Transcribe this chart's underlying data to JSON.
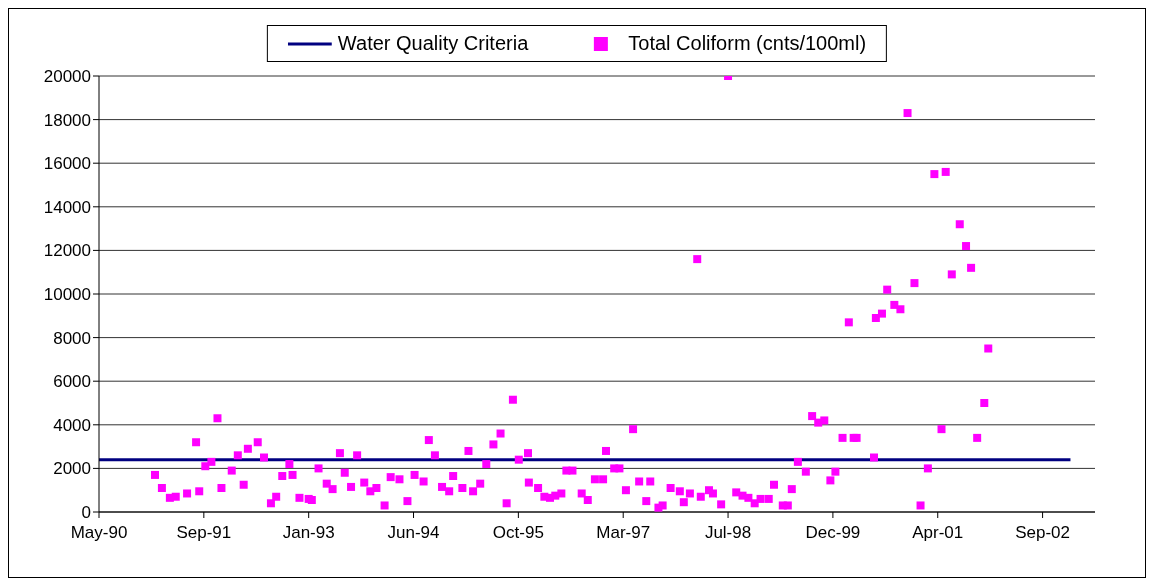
{
  "chart_data": {
    "type": "scatter",
    "legend": "top",
    "grid": "y",
    "line_style": "solid",
    "xlim": [
      "1990-05-07",
      "2003-05-09"
    ],
    "xticks": [
      {
        "value": "1990-05-07",
        "label": "May-90"
      },
      {
        "value": "1991-09-19",
        "label": "Sep-91"
      },
      {
        "value": "1993-01-31",
        "label": "Jan-93"
      },
      {
        "value": "1994-06-15",
        "label": "Jun-94"
      },
      {
        "value": "1995-10-28",
        "label": "Oct-95"
      },
      {
        "value": "1997-03-11",
        "label": "Mar-97"
      },
      {
        "value": "1998-07-24",
        "label": "Jul-98"
      },
      {
        "value": "1999-12-06",
        "label": "Dec-99"
      },
      {
        "value": "2001-04-19",
        "label": "Apr-01"
      },
      {
        "value": "2002-09-01",
        "label": "Sep-02"
      }
    ],
    "ylim": [
      0,
      20000
    ],
    "yticks": [
      0,
      2000,
      4000,
      6000,
      8000,
      10000,
      12000,
      14000,
      16000,
      18000,
      20000
    ],
    "series": [
      {
        "name": "Water Quality Criteria",
        "type": "line",
        "color": "#000080",
        "marker": "none",
        "x": [
          "1990-05-07",
          "2003-01-12"
        ],
        "values": [
          2400,
          2400
        ]
      },
      {
        "name": "Total Coliform (cnts/100ml)",
        "color": "#ff00ff",
        "marker": "square",
        "x": [
          "1991-01-29",
          "1991-03-03",
          "1991-04-10",
          "1991-05-08",
          "1991-07-01",
          "1991-08-13",
          "1991-08-28",
          "1991-09-26",
          "1991-10-25",
          "1991-11-23",
          "1991-12-12",
          "1992-01-30",
          "1992-02-28",
          "1992-03-27",
          "1992-04-16",
          "1992-06-02",
          "1992-07-02",
          "1992-08-04",
          "1992-08-29",
          "1992-09-27",
          "1992-10-31",
          "1992-11-15",
          "1992-12-18",
          "1993-01-31",
          "1993-02-15",
          "1993-03-19",
          "1993-04-27",
          "1993-05-25",
          "1993-06-29",
          "1993-07-22",
          "1993-08-21",
          "1993-09-19",
          "1993-10-23",
          "1993-11-21",
          "1993-12-20",
          "1994-01-28",
          "1994-02-26",
          "1994-04-09",
          "1994-05-17",
          "1994-06-20",
          "1994-08-02",
          "1994-08-27",
          "1994-09-25",
          "1994-10-29",
          "1994-12-02",
          "1994-12-21",
          "1995-02-03",
          "1995-03-04",
          "1995-03-26",
          "1995-04-29",
          "1995-05-28",
          "1995-07-01",
          "1995-08-04",
          "1995-09-02",
          "1995-10-02",
          "1995-10-30",
          "1995-12-13",
          "1995-12-17",
          "1996-01-30",
          "1996-02-29",
          "1996-03-27",
          "1996-04-21",
          "1996-05-20",
          "1996-06-13",
          "1996-07-12",
          "1996-08-25",
          "1996-09-23",
          "1996-10-27",
          "1996-12-05",
          "1996-12-19",
          "1997-01-27",
          "1997-02-21",
          "1997-03-24",
          "1997-04-27",
          "1997-05-26",
          "1997-06-29",
          "1997-07-18",
          "1997-08-26",
          "1997-09-15",
          "1997-10-23",
          "1997-12-06",
          "1997-12-25",
          "1998-01-23",
          "1998-02-27",
          "1998-03-16",
          "1998-04-24",
          "1998-05-13",
          "1998-06-21",
          "1998-07-24",
          "1998-09-01",
          "1998-10-01",
          "1998-10-29",
          "1998-11-28",
          "1998-12-26",
          "1999-02-03",
          "1999-02-28",
          "1999-04-11",
          "1999-05-05",
          "1999-05-24",
          "1999-06-22",
          "1999-07-30",
          "1999-08-29",
          "1999-09-27",
          "1999-10-26",
          "1999-11-24",
          "1999-12-18",
          "2000-01-21",
          "2000-02-20",
          "2000-03-14",
          "2000-03-28",
          "2000-06-19",
          "2000-06-28",
          "2000-07-27",
          "2000-08-21",
          "2000-09-24",
          "2000-10-23",
          "2000-11-26",
          "2000-12-29",
          "2001-01-27",
          "2001-03-03",
          "2001-04-03",
          "2001-05-07",
          "2001-05-27",
          "2001-06-25",
          "2001-08-02",
          "2001-09-01",
          "2001-09-25",
          "2001-10-24",
          "2001-11-27",
          "2001-12-16"
        ],
        "values": [
          1700,
          1100,
          650,
          700,
          850,
          3200,
          950,
          2100,
          2300,
          4300,
          1100,
          1900,
          2600,
          1250,
          2900,
          3200,
          2500,
          400,
          700,
          1650,
          2200,
          1700,
          650,
          600,
          550,
          2000,
          1300,
          1050,
          2700,
          1800,
          1150,
          2600,
          1350,
          950,
          1100,
          300,
          1600,
          1500,
          500,
          1700,
          1400,
          3300,
          2600,
          1150,
          950,
          1650,
          1100,
          2800,
          950,
          1300,
          2200,
          3100,
          3600,
          400,
          5150,
          2400,
          2700,
          1350,
          1100,
          700,
          650,
          750,
          850,
          1900,
          1900,
          850,
          550,
          1500,
          1500,
          2800,
          2000,
          2000,
          1000,
          3800,
          1400,
          500,
          1400,
          200,
          300,
          1100,
          950,
          450,
          850,
          11600,
          700,
          1000,
          850,
          350,
          20000,
          900,
          750,
          650,
          400,
          600,
          600,
          1250,
          300,
          300,
          1050,
          2300,
          1850,
          4400,
          4100,
          4200,
          1450,
          1850,
          3400,
          8700,
          3400,
          3400,
          2500,
          8900,
          9100,
          10200,
          9500,
          9300,
          18300,
          10500,
          300,
          2000,
          15500,
          3800,
          15600,
          10900,
          13200,
          12200,
          11200,
          3400,
          5000,
          7500
        ]
      }
    ]
  }
}
